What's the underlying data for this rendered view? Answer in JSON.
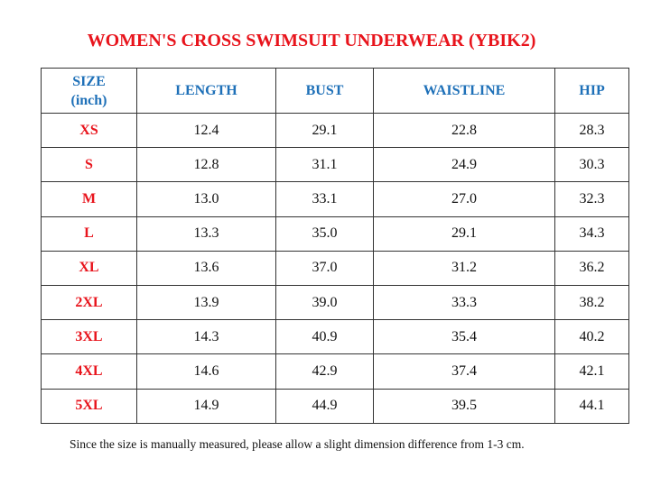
{
  "title": "WOMEN'S CROSS SWIMSUIT UNDERWEAR (YBIK2)",
  "table": {
    "headers": [
      [
        "SIZE",
        "(inch)"
      ],
      "LENGTH",
      "BUST",
      "WAISTLINE",
      "HIP"
    ],
    "rows": [
      [
        "XS",
        "12.4",
        "29.1",
        "22.8",
        "28.3"
      ],
      [
        "S",
        "12.8",
        "31.1",
        "24.9",
        "30.3"
      ],
      [
        "M",
        "13.0",
        "33.1",
        "27.0",
        "32.3"
      ],
      [
        "L",
        "13.3",
        "35.0",
        "29.1",
        "34.3"
      ],
      [
        "XL",
        "13.6",
        "37.0",
        "31.2",
        "36.2"
      ],
      [
        "2XL",
        "13.9",
        "39.0",
        "33.3",
        "38.2"
      ],
      [
        "3XL",
        "14.3",
        "40.9",
        "35.4",
        "40.2"
      ],
      [
        "4XL",
        "14.6",
        "42.9",
        "37.4",
        "42.1"
      ],
      [
        "5XL",
        "14.9",
        "44.9",
        "39.5",
        "44.1"
      ]
    ]
  },
  "note": "Since the size is manually measured, please allow a slight dimension difference from 1-3 cm."
}
